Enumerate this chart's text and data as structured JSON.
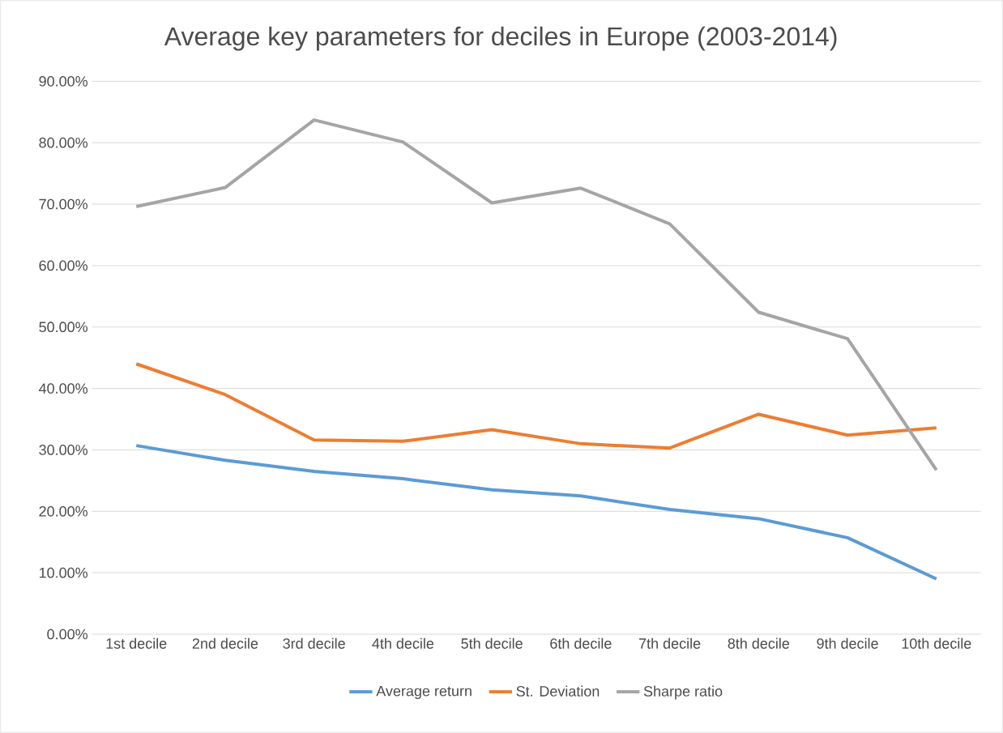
{
  "chart_data": {
    "type": "line",
    "title": "Average key parameters for deciles in Europe (2003-2014)",
    "categories": [
      "1st decile",
      "2nd decile",
      "3rd decile",
      "4th decile",
      "5th decile",
      "6th decile",
      "7th decile",
      "8th decile",
      "9th decile",
      "10th decile"
    ],
    "series": [
      {
        "name": "Average return",
        "color": "#5b9bd5",
        "values": [
          30.7,
          28.3,
          26.5,
          25.3,
          23.5,
          22.5,
          20.3,
          18.8,
          15.7,
          9.0
        ]
      },
      {
        "name": "St. Deviation",
        "color": "#ed7d31",
        "values": [
          44.0,
          39.0,
          31.6,
          31.4,
          33.3,
          31.0,
          30.3,
          35.8,
          32.4,
          33.6
        ]
      },
      {
        "name": "Sharpe ratio",
        "color": "#a5a5a5",
        "values": [
          69.6,
          72.7,
          83.7,
          80.1,
          70.2,
          72.6,
          66.8,
          52.4,
          48.1,
          26.7
        ]
      }
    ],
    "ylim": [
      0,
      90
    ],
    "yticks": [
      {
        "value": 0,
        "label": "0.00%"
      },
      {
        "value": 10,
        "label": "10.00%"
      },
      {
        "value": 20,
        "label": "20.00%"
      },
      {
        "value": 30,
        "label": "30.00%"
      },
      {
        "value": 40,
        "label": "40.00%"
      },
      {
        "value": 50,
        "label": "50.00%"
      },
      {
        "value": 60,
        "label": "60.00%"
      },
      {
        "value": 70,
        "label": "70.00%"
      },
      {
        "value": 80,
        "label": "80.00%"
      },
      {
        "value": 90,
        "label": "90.00%"
      }
    ],
    "grid": "y",
    "legend": "bottom",
    "marker": "none",
    "line_style": "solid"
  }
}
